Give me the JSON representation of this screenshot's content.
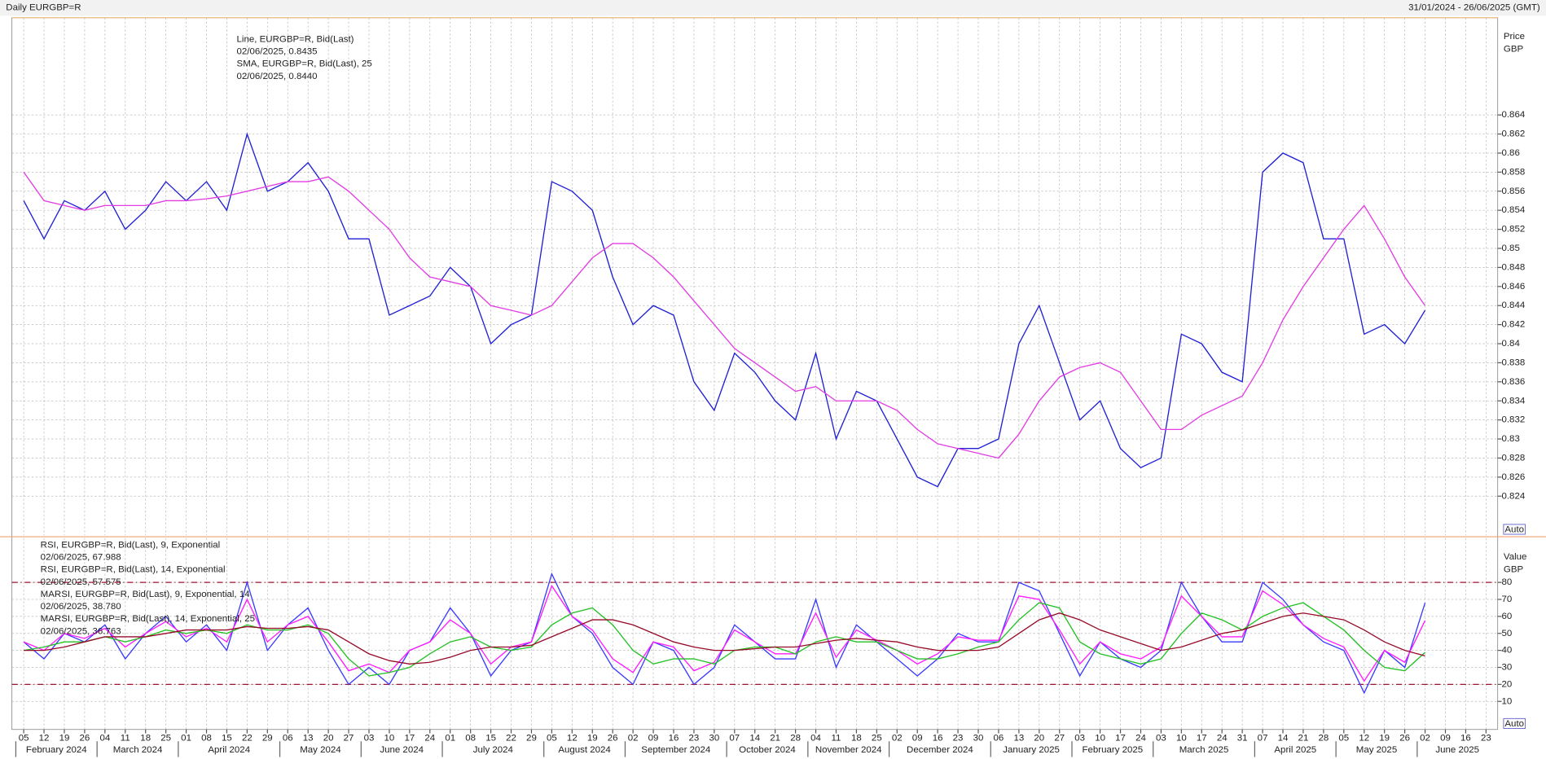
{
  "header": {
    "title": "Daily EURGBP=R",
    "range": "31/01/2024 - 26/06/2025 (GMT)"
  },
  "chart_data": [
    {
      "type": "line",
      "y_label": "Price",
      "y_unit": "GBP",
      "button": "Auto",
      "ylim": [
        0.8199,
        0.8742
      ],
      "yticks": [
        0.824,
        0.826,
        0.828,
        0.83,
        0.832,
        0.834,
        0.836,
        0.838,
        0.84,
        0.842,
        0.844,
        0.846,
        0.848,
        0.85,
        0.852,
        0.854,
        0.856,
        0.858,
        0.86,
        0.862,
        0.864
      ],
      "grid": true,
      "series": [
        {
          "name": "Line, EURGBP=R, Bid(Last)",
          "legend_value": "02/06/2025, 0.8435",
          "color": "#1f1fd6",
          "values": [
            0.855,
            0.851,
            0.855,
            0.854,
            0.856,
            0.852,
            0.854,
            0.857,
            0.855,
            0.857,
            0.854,
            0.862,
            0.856,
            0.857,
            0.859,
            0.856,
            0.851,
            0.851,
            0.843,
            0.844,
            0.845,
            0.848,
            0.846,
            0.84,
            0.842,
            0.843,
            0.857,
            0.856,
            0.854,
            0.847,
            0.842,
            0.844,
            0.843,
            0.836,
            0.833,
            0.839,
            0.837,
            0.834,
            0.832,
            0.839,
            0.83,
            0.835,
            0.834,
            0.83,
            0.826,
            0.825,
            0.829,
            0.829,
            0.83,
            0.84,
            0.844,
            0.838,
            0.832,
            0.834,
            0.829,
            0.827,
            0.828,
            0.841,
            0.84,
            0.837,
            0.836,
            0.858,
            0.86,
            0.859,
            0.851,
            0.851,
            0.841,
            0.842,
            0.84,
            0.8435,
            null,
            null,
            null
          ]
        },
        {
          "name": "SMA, EURGBP=R, Bid(Last),  25",
          "legend_value": "02/06/2025, 0.8440",
          "color": "#e23ce2",
          "values": [
            0.858,
            0.855,
            0.8545,
            0.854,
            0.8545,
            0.8545,
            0.8545,
            0.855,
            0.855,
            0.8552,
            0.8555,
            0.856,
            0.8565,
            0.857,
            0.857,
            0.8575,
            0.856,
            0.854,
            0.852,
            0.849,
            0.847,
            0.8465,
            0.846,
            0.844,
            0.8435,
            0.843,
            0.844,
            0.8465,
            0.849,
            0.8505,
            0.8505,
            0.849,
            0.847,
            0.8445,
            0.842,
            0.8395,
            0.838,
            0.8365,
            0.835,
            0.8355,
            0.834,
            0.834,
            0.834,
            0.833,
            0.831,
            0.8295,
            0.829,
            0.8285,
            0.828,
            0.8305,
            0.834,
            0.8365,
            0.8375,
            0.838,
            0.837,
            0.834,
            0.831,
            0.831,
            0.8325,
            0.8335,
            0.8345,
            0.838,
            0.8425,
            0.846,
            0.849,
            0.852,
            0.8545,
            0.851,
            0.847,
            0.844,
            null,
            null,
            null
          ]
        }
      ]
    },
    {
      "type": "line",
      "y_label": "Value",
      "y_unit": "GBP",
      "button": "Auto",
      "ylim": [
        -6.5,
        106
      ],
      "yticks": [
        10,
        20,
        30,
        40,
        50,
        60,
        70,
        80
      ],
      "levels": [
        20,
        80
      ],
      "level_color": "#a01030",
      "grid": true,
      "categories": [
        "05",
        "12",
        "19",
        "26",
        "04",
        "11",
        "18",
        "25",
        "01",
        "08",
        "15",
        "22",
        "29",
        "06",
        "13",
        "20",
        "27",
        "03",
        "10",
        "17",
        "24",
        "01",
        "08",
        "15",
        "22",
        "29",
        "05",
        "12",
        "19",
        "26",
        "02",
        "09",
        "16",
        "23",
        "30",
        "07",
        "14",
        "21",
        "28",
        "04",
        "11",
        "18",
        "25",
        "02",
        "09",
        "16",
        "23",
        "30",
        "06",
        "13",
        "20",
        "27",
        "03",
        "10",
        "17",
        "24",
        "03",
        "10",
        "17",
        "24",
        "31",
        "07",
        "14",
        "21",
        "28",
        "05",
        "12",
        "19",
        "26",
        "02",
        "09",
        "16",
        "23"
      ],
      "months": [
        "February 2024",
        "March 2024",
        "April 2024",
        "May 2024",
        "June 2024",
        "July 2024",
        "August 2024",
        "September 2024",
        "October 2024",
        "November 2024",
        "December 2024",
        "January 2025",
        "February 2025",
        "March 2025",
        "April 2025",
        "May 2025",
        "June 2025"
      ],
      "series": [
        {
          "name": "RSI, EURGBP=R, Bid(Last),  9, Exponential",
          "legend_value": "02/06/2025, 67.988",
          "color": "#3a3aff",
          "values": [
            45,
            35,
            50,
            45,
            55,
            35,
            50,
            60,
            45,
            55,
            40,
            80,
            40,
            55,
            65,
            40,
            20,
            30,
            20,
            40,
            45,
            65,
            50,
            25,
            40,
            45,
            85,
            60,
            50,
            30,
            20,
            45,
            40,
            20,
            30,
            55,
            45,
            35,
            35,
            70,
            30,
            55,
            45,
            35,
            25,
            35,
            50,
            45,
            45,
            80,
            75,
            50,
            25,
            45,
            35,
            30,
            40,
            80,
            60,
            45,
            45,
            80,
            70,
            55,
            45,
            40,
            15,
            40,
            30,
            67.988,
            null,
            null,
            null
          ]
        },
        {
          "name": "RSI, EURGBP=R, Bid(Last),  14, Exponential",
          "legend_value": "02/06/2025, 57.575",
          "color": "#ff1aff",
          "values": [
            45,
            40,
            50,
            47,
            53,
            42,
            50,
            57,
            48,
            53,
            45,
            70,
            45,
            55,
            60,
            45,
            28,
            32,
            27,
            40,
            45,
            58,
            50,
            32,
            42,
            45,
            78,
            60,
            52,
            35,
            27,
            45,
            42,
            28,
            33,
            52,
            45,
            38,
            38,
            62,
            36,
            52,
            46,
            40,
            32,
            38,
            48,
            46,
            46,
            72,
            70,
            52,
            32,
            45,
            38,
            35,
            42,
            72,
            60,
            48,
            48,
            75,
            67,
            55,
            47,
            42,
            22,
            40,
            33,
            57.575,
            null,
            null,
            null
          ]
        },
        {
          "name": "MARSI, EURGBP=R, Bid(Last),  9, Exponential, 14",
          "legend_value": "02/06/2025, 38.780",
          "color": "#22c022",
          "values": [
            40,
            42,
            45,
            45,
            48,
            45,
            48,
            52,
            50,
            52,
            50,
            55,
            52,
            52,
            55,
            50,
            35,
            25,
            27,
            30,
            38,
            45,
            48,
            42,
            40,
            42,
            55,
            62,
            65,
            55,
            40,
            32,
            35,
            35,
            32,
            40,
            42,
            42,
            38,
            45,
            48,
            45,
            45,
            40,
            35,
            35,
            38,
            42,
            45,
            58,
            68,
            65,
            45,
            38,
            35,
            32,
            35,
            50,
            62,
            58,
            52,
            60,
            65,
            68,
            60,
            52,
            40,
            30,
            28,
            38.78,
            null,
            null,
            null
          ]
        },
        {
          "name": "MARSI, EURGBP=R, Bid(Last),  14, Exponential, 25",
          "legend_value": "02/06/2025, 36.763",
          "color": "#960a28",
          "values": [
            40,
            40,
            42,
            45,
            48,
            48,
            48,
            50,
            52,
            52,
            52,
            54,
            53,
            53,
            54,
            52,
            45,
            38,
            34,
            32,
            33,
            36,
            40,
            42,
            42,
            43,
            48,
            53,
            58,
            58,
            55,
            50,
            45,
            42,
            40,
            40,
            41,
            42,
            42,
            44,
            46,
            47,
            46,
            45,
            42,
            40,
            40,
            40,
            42,
            50,
            58,
            62,
            58,
            52,
            48,
            44,
            40,
            42,
            46,
            50,
            52,
            56,
            60,
            62,
            60,
            58,
            52,
            45,
            40,
            36.763,
            null,
            null,
            null
          ]
        }
      ]
    }
  ]
}
